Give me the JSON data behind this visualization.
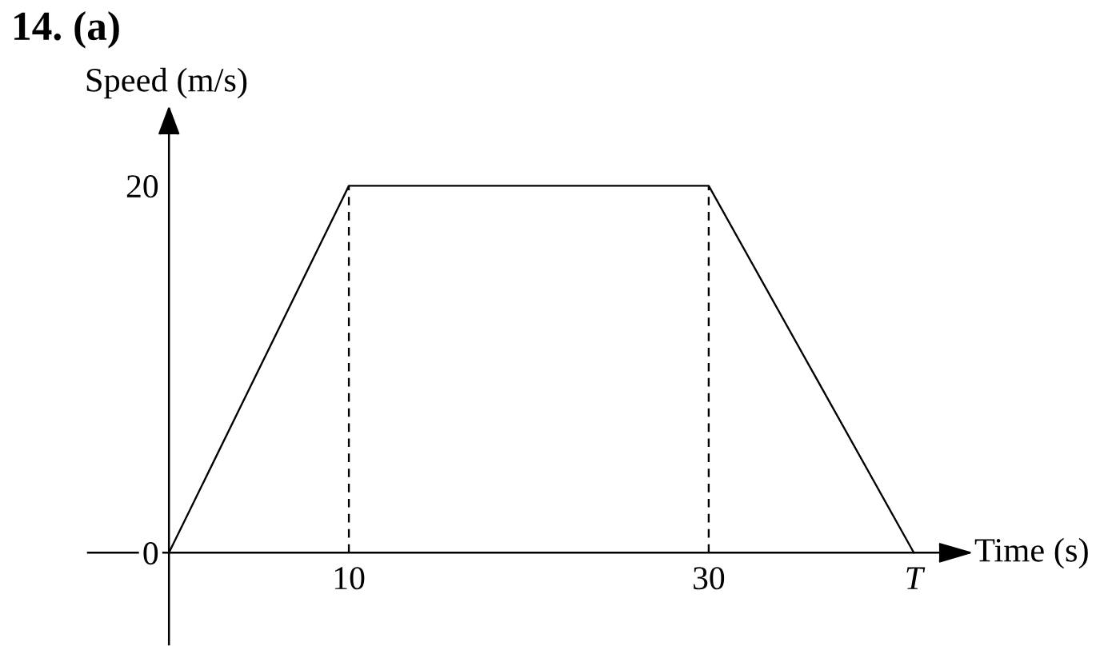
{
  "chart_data": {
    "type": "line",
    "title": "14. (a)",
    "xlabel": "Time (s)",
    "ylabel": "Speed (m/s)",
    "series": [
      {
        "color": "#000000",
        "x": [
          0,
          10,
          30,
          41.4
        ],
        "values": [
          0,
          20,
          20,
          0
        ]
      },
      {
        "color": "#000000",
        "x": [
          10,
          10
        ],
        "values": [
          0,
          20
        ],
        "line_style": "dashed"
      },
      {
        "color": "#000000",
        "x": [
          30,
          30
        ],
        "values": [
          0,
          20
        ],
        "line_style": "dashed"
      }
    ],
    "xlim": [
      -4.5,
      44.5
    ],
    "ylim": [
      -5,
      24.2
    ],
    "xticks": [
      10,
      30,
      {
        "value": 41.4,
        "label": "T"
      }
    ],
    "yticks": [
      0,
      20
    ],
    "line_style": "solid",
    "grid": false
  }
}
